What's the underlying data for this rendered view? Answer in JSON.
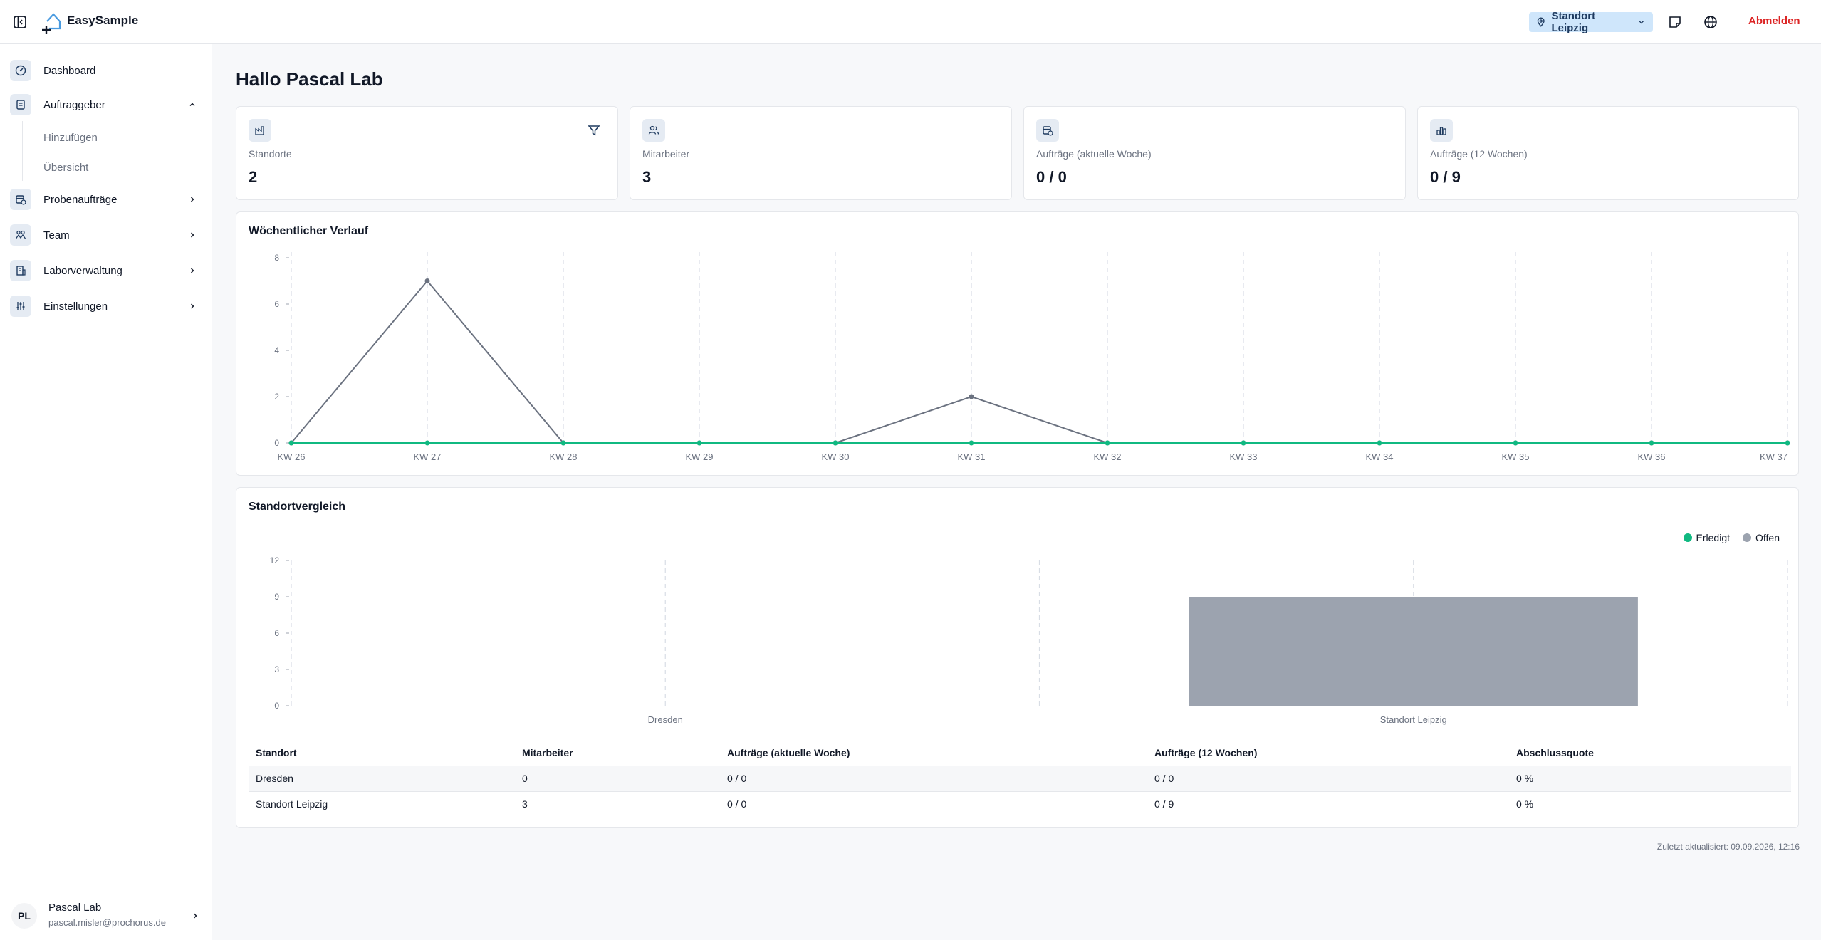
{
  "app": {
    "brand": "EasySample"
  },
  "topbar": {
    "location_button": "Standort Leipzig",
    "logout": "Abmelden",
    "icons": [
      "sidebar-toggle-icon",
      "map-pin-icon",
      "chevron-down-icon",
      "sticky-note-icon",
      "globe-icon"
    ]
  },
  "sidebar": {
    "items": [
      {
        "label": "Dashboard",
        "icon": "dashboard-icon"
      },
      {
        "label": "Auftraggeber",
        "icon": "clipboard-icon",
        "expanded": true
      },
      {
        "label": "Probenaufträge",
        "icon": "calendar-clock-icon"
      },
      {
        "label": "Team",
        "icon": "team-icon"
      },
      {
        "label": "Laborverwaltung",
        "icon": "building-icon"
      },
      {
        "label": "Einstellungen",
        "icon": "sliders-icon"
      }
    ],
    "subitems": [
      {
        "label": "Hinzufügen"
      },
      {
        "label": "Übersicht"
      }
    ],
    "user": {
      "initials": "PL",
      "name": "Pascal Lab",
      "email": "pascal.misler@prochorus.de"
    }
  },
  "main": {
    "greeting": "Hallo Pascal Lab",
    "stats": [
      {
        "label": "Standorte",
        "value": "2",
        "icon": "factory-icon"
      },
      {
        "label": "Mitarbeiter",
        "value": "3",
        "icon": "users-icon"
      },
      {
        "label": "Aufträge (aktuelle Woche)",
        "value": "0 / 0",
        "icon": "calendar-clock-icon"
      },
      {
        "label": "Aufträge (12 Wochen)",
        "value": "0 / 9",
        "icon": "bar-chart-icon"
      }
    ],
    "weekly_title": "Wöchentlicher Verlauf",
    "compare_title": "Standortvergleich",
    "legend": {
      "done": "Erledigt",
      "open": "Offen"
    },
    "colors": {
      "done": "#10b981",
      "open": "#9ca3af",
      "line_open": "#6b7280"
    },
    "table": {
      "headers": [
        "Standort",
        "Mitarbeiter",
        "Aufträge (aktuelle Woche)",
        "Aufträge (12 Wochen)",
        "Abschlussquote"
      ],
      "rows": [
        [
          "Dresden",
          "0",
          "0 / 0",
          "0 / 0",
          "0 %"
        ],
        [
          "Standort Leipzig",
          "3",
          "0 / 0",
          "0 / 9",
          "0 %"
        ]
      ]
    },
    "updated": "Zuletzt aktualisiert: 09.09.2026, 12:16"
  },
  "chart_data": [
    {
      "type": "line",
      "title": "Wöchentlicher Verlauf",
      "categories": [
        "KW 26",
        "KW 27",
        "KW 28",
        "KW 29",
        "KW 30",
        "KW 31",
        "KW 32",
        "KW 33",
        "KW 34",
        "KW 35",
        "KW 36",
        "KW 37"
      ],
      "ylim": [
        0,
        8
      ],
      "yticks": [
        0,
        2,
        4,
        6,
        8
      ],
      "grid": "vertical dashed",
      "series": [
        {
          "values": [
            0,
            7,
            0,
            0,
            0,
            2,
            0,
            0,
            0,
            0,
            0,
            0
          ]
        },
        {
          "values": [
            0,
            0,
            0,
            0,
            0,
            0,
            0,
            0,
            0,
            0,
            0,
            0
          ]
        }
      ]
    },
    {
      "type": "bar",
      "title": "Standortvergleich",
      "categories": [
        "Dresden",
        "Standort Leipzig"
      ],
      "ylim": [
        0,
        12
      ],
      "yticks": [
        0,
        3,
        6,
        9,
        12
      ],
      "legend": "top-right",
      "series": [
        {
          "name": "Erledigt",
          "values": [
            0,
            0
          ]
        },
        {
          "name": "Offen",
          "values": [
            0,
            9
          ]
        }
      ]
    }
  ]
}
